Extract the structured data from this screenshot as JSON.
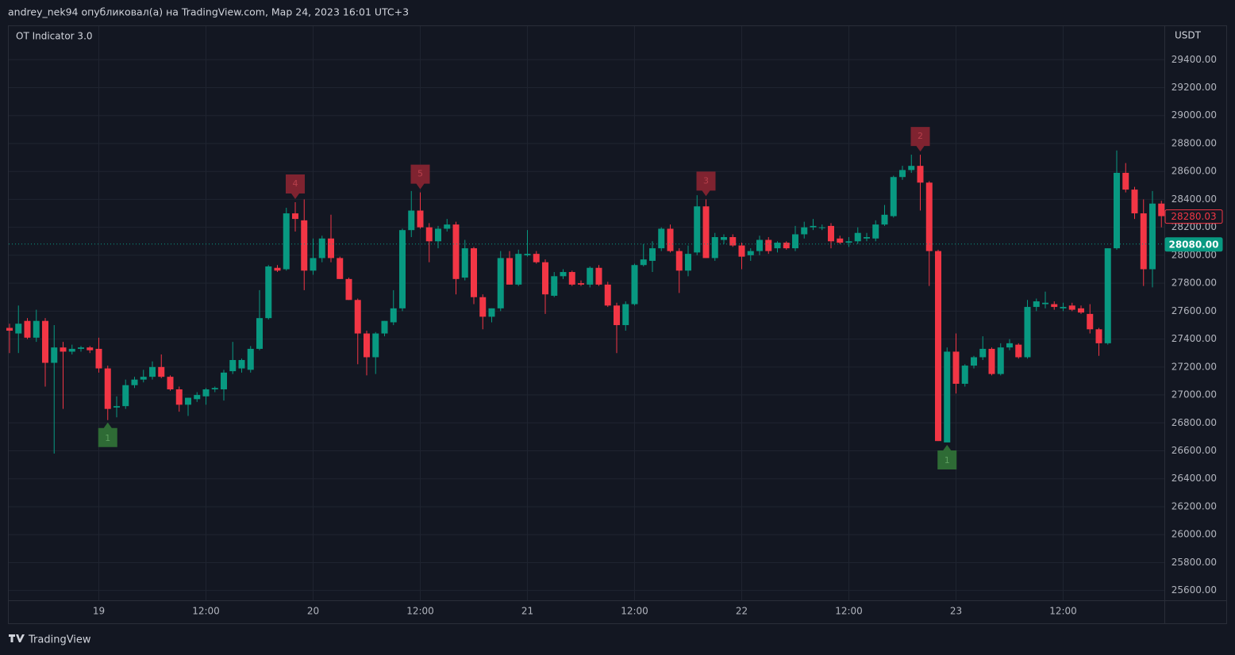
{
  "header": "andrey_nek94 опубликовал(а) на TradingView.com, Мар 24, 2023 16:01 UTC+3",
  "footer": "TradingView",
  "chart_data": {
    "type": "candlestick",
    "title": "OT Indicator 3.0",
    "y_unit": "USDT",
    "up_color": "#089981",
    "down_color": "#f23645",
    "grid": true,
    "categories": [
      null,
      null,
      null,
      null,
      null,
      null,
      null,
      null,
      null,
      null,
      "19",
      null,
      null,
      null,
      null,
      null,
      null,
      null,
      null,
      null,
      null,
      null,
      "12:00",
      null,
      null,
      null,
      null,
      null,
      null,
      null,
      null,
      null,
      null,
      null,
      "20",
      null,
      null,
      null,
      null,
      null,
      null,
      null,
      null,
      null,
      null,
      null,
      "12:00",
      null,
      null,
      null,
      null,
      null,
      null,
      null,
      null,
      null,
      null,
      null,
      "21",
      null,
      null,
      null,
      null,
      null,
      null,
      null,
      null,
      null,
      null,
      null,
      "12:00",
      null,
      null,
      null,
      null,
      null,
      null,
      null,
      null,
      null,
      null,
      null,
      "22",
      null,
      null,
      null,
      null,
      null,
      null,
      null,
      null,
      null,
      null,
      null,
      "12:00",
      null,
      null,
      null,
      null,
      null,
      null,
      null,
      null,
      null,
      null,
      null,
      "23",
      null,
      null,
      null,
      null,
      null,
      null,
      null,
      null,
      null,
      null,
      null,
      "12:00",
      null,
      null,
      null,
      null,
      null,
      null,
      null,
      null,
      null,
      null,
      null
    ],
    "open": [
      27480,
      27440,
      27530,
      27410,
      27530,
      27230,
      27340,
      27310,
      27330,
      27340,
      27330,
      27190,
      26910,
      26920,
      27070,
      27110,
      27130,
      27200,
      27130,
      27040,
      26930,
      26970,
      26990,
      27040,
      27040,
      27170,
      27190,
      27180,
      27330,
      27550,
      27910,
      27900,
      28300,
      28250,
      27890,
      27980,
      28120,
      27980,
      27830,
      27680,
      27440,
      27270,
      27440,
      27520,
      27620,
      28180,
      28320,
      28200,
      28100,
      28190,
      28220,
      27840,
      28050,
      27700,
      27560,
      27620,
      27980,
      27790,
      28000,
      28010,
      27950,
      27710,
      27850,
      27880,
      27800,
      27790,
      27910,
      27790,
      27640,
      27500,
      27650,
      27930,
      27960,
      28050,
      28190,
      28030,
      27890,
      28020,
      28350,
      27980,
      28110,
      28130,
      28070,
      28000,
      28030,
      28110,
      28050,
      28090,
      28050,
      28150,
      28200,
      28200,
      28210,
      28120,
      28090,
      28100,
      28120,
      28120,
      28220,
      28280,
      28560,
      28610,
      28640,
      28520,
      28030,
      26660,
      27310,
      27080,
      27210,
      27270,
      27330,
      27150,
      27340,
      27360,
      27270,
      27630,
      27650,
      27650,
      27620,
      27640,
      27620,
      27580,
      27470,
      27370,
      28050,
      28590,
      28470,
      28300,
      27900,
      28370
    ],
    "high": [
      27510,
      27640,
      27550,
      27610,
      27550,
      27500,
      27380,
      27360,
      27350,
      27350,
      27410,
      27210,
      26990,
      27110,
      27130,
      27180,
      27240,
      27290,
      27140,
      27060,
      26980,
      27020,
      27050,
      27060,
      27180,
      27380,
      27260,
      27350,
      27750,
      27930,
      27930,
      28340,
      28380,
      28400,
      28120,
      28140,
      28290,
      27990,
      27840,
      27690,
      27460,
      27450,
      27530,
      27750,
      28190,
      28460,
      28450,
      28230,
      28210,
      28260,
      28240,
      28110,
      28060,
      27720,
      27620,
      28030,
      28030,
      28040,
      28180,
      28030,
      27970,
      27880,
      27900,
      27890,
      27820,
      27920,
      27930,
      27810,
      27660,
      27670,
      27940,
      28080,
      28100,
      28200,
      28220,
      28050,
      28070,
      28430,
      28400,
      28160,
      28150,
      28150,
      28090,
      28050,
      28140,
      28130,
      28100,
      28100,
      28210,
      28240,
      28260,
      28220,
      28230,
      28140,
      28130,
      28200,
      28160,
      28250,
      28360,
      28570,
      28640,
      28720,
      28720,
      28530,
      28040,
      27340,
      27440,
      27220,
      27280,
      27420,
      27340,
      27370,
      27400,
      27370,
      27680,
      27690,
      27740,
      27670,
      27660,
      27660,
      27640,
      27650,
      27480,
      28050,
      28750,
      28660,
      28490,
      28400,
      28460,
      28390
    ],
    "low": [
      27300,
      27300,
      27400,
      27380,
      27060,
      26580,
      26900,
      27290,
      27310,
      27300,
      27160,
      26820,
      26840,
      26900,
      27050,
      27090,
      27110,
      27120,
      27030,
      26880,
      26850,
      26950,
      26930,
      27020,
      26960,
      27150,
      27160,
      27160,
      27320,
      27540,
      27880,
      27890,
      28170,
      27750,
      27860,
      27950,
      27950,
      27830,
      27680,
      27220,
      27140,
      27150,
      27420,
      27500,
      27600,
      28130,
      28190,
      27950,
      28050,
      28170,
      27720,
      27820,
      27650,
      27470,
      27520,
      27600,
      27790,
      27780,
      27990,
      27940,
      27580,
      27700,
      27830,
      27780,
      27780,
      27770,
      27780,
      27630,
      27300,
      27460,
      27640,
      27920,
      27880,
      28030,
      28020,
      27730,
      27850,
      28000,
      27980,
      27960,
      28080,
      28060,
      27900,
      27960,
      28000,
      28010,
      28020,
      28040,
      28030,
      28120,
      28180,
      28180,
      28050,
      28080,
      28060,
      28080,
      28100,
      28100,
      28210,
      28270,
      28540,
      28590,
      28320,
      27780,
      26670,
      26660,
      27010,
      27060,
      27190,
      27250,
      27140,
      27140,
      27320,
      27260,
      27260,
      27600,
      27620,
      27610,
      27600,
      27600,
      27580,
      27440,
      27280,
      27360,
      28040,
      28450,
      28260,
      27780,
      27770,
      28200
    ],
    "close": [
      27460,
      27510,
      27410,
      27530,
      27230,
      27340,
      27310,
      27330,
      27340,
      27320,
      27190,
      26900,
      26920,
      27070,
      27110,
      27130,
      27200,
      27130,
      27040,
      26930,
      26980,
      27000,
      27040,
      27050,
      27160,
      27250,
      27250,
      27330,
      27550,
      27920,
      27890,
      28300,
      28260,
      27890,
      27980,
      28120,
      27980,
      27830,
      27680,
      27440,
      27270,
      27440,
      27530,
      27620,
      28180,
      28320,
      28200,
      28100,
      28190,
      28220,
      27830,
      28050,
      27700,
      27560,
      27620,
      27980,
      27790,
      28010,
      28010,
      27950,
      27720,
      27850,
      27880,
      27790,
      27790,
      27910,
      27790,
      27640,
      27500,
      27650,
      27930,
      27970,
      28050,
      28190,
      28030,
      27890,
      28010,
      28350,
      27980,
      28130,
      28130,
      28070,
      27990,
      28030,
      28110,
      28030,
      28090,
      28050,
      28150,
      28200,
      28210,
      28200,
      28100,
      28090,
      28100,
      28160,
      28130,
      28220,
      28290,
      28560,
      28610,
      28640,
      28520,
      28030,
      26670,
      27310,
      27080,
      27210,
      27270,
      27330,
      27150,
      27340,
      27370,
      27270,
      27630,
      27670,
      27660,
      27630,
      27630,
      27610,
      27590,
      27470,
      27370,
      28050,
      28590,
      28470,
      28300,
      27900,
      28370,
      28280.03
    ],
    "signals": [
      {
        "label": "1",
        "candle": 11,
        "side": "below",
        "color": "#2e6b35",
        "text_color": "#5d9e5f"
      },
      {
        "label": "4",
        "candle": 32,
        "side": "above",
        "color": "#7f2330",
        "text_color": "#b8404c"
      },
      {
        "label": "5",
        "candle": 46,
        "side": "above",
        "color": "#7f2330",
        "text_color": "#b8404c"
      },
      {
        "label": "3",
        "candle": 78,
        "side": "above",
        "color": "#7f2330",
        "text_color": "#b8404c"
      },
      {
        "label": "2",
        "candle": 102,
        "side": "above",
        "color": "#7f2330",
        "text_color": "#b8404c"
      },
      {
        "label": "1",
        "candle": 105,
        "side": "below",
        "color": "#2e6b35",
        "text_color": "#5d9e5f"
      }
    ],
    "price_lines": [
      {
        "value": 28280.03,
        "label": "28280.03",
        "color": "#f23645",
        "filled": false,
        "line": false
      },
      {
        "value": 28080,
        "label": "28080.00",
        "color": "#089981",
        "filled": true,
        "line": true
      }
    ],
    "ylim": [
      25530,
      29640
    ],
    "yticks": [
      {
        "value": 25600,
        "label": "25600.00"
      },
      {
        "value": 25800,
        "label": "25800.00"
      },
      {
        "value": 26000,
        "label": "26000.00"
      },
      {
        "value": 26200,
        "label": "26200.00"
      },
      {
        "value": 26400,
        "label": "26400.00"
      },
      {
        "value": 26600,
        "label": "26600.00"
      },
      {
        "value": 26800,
        "label": "26800.00"
      },
      {
        "value": 27000,
        "label": "27000.00"
      },
      {
        "value": 27200,
        "label": "27200.00"
      },
      {
        "value": 27400,
        "label": "27400.00"
      },
      {
        "value": 27600,
        "label": "27600.00"
      },
      {
        "value": 27800,
        "label": "27800.00"
      },
      {
        "value": 28000,
        "label": "28000.00"
      },
      {
        "value": 28200,
        "label": "28200.00"
      },
      {
        "value": 28400,
        "label": "28400.00"
      },
      {
        "value": 28600,
        "label": "28600.00"
      },
      {
        "value": 28800,
        "label": "28800.00"
      },
      {
        "value": 29000,
        "label": "29000.00"
      },
      {
        "value": 29200,
        "label": "29200.00"
      },
      {
        "value": 29400,
        "label": "29400.00"
      }
    ]
  }
}
